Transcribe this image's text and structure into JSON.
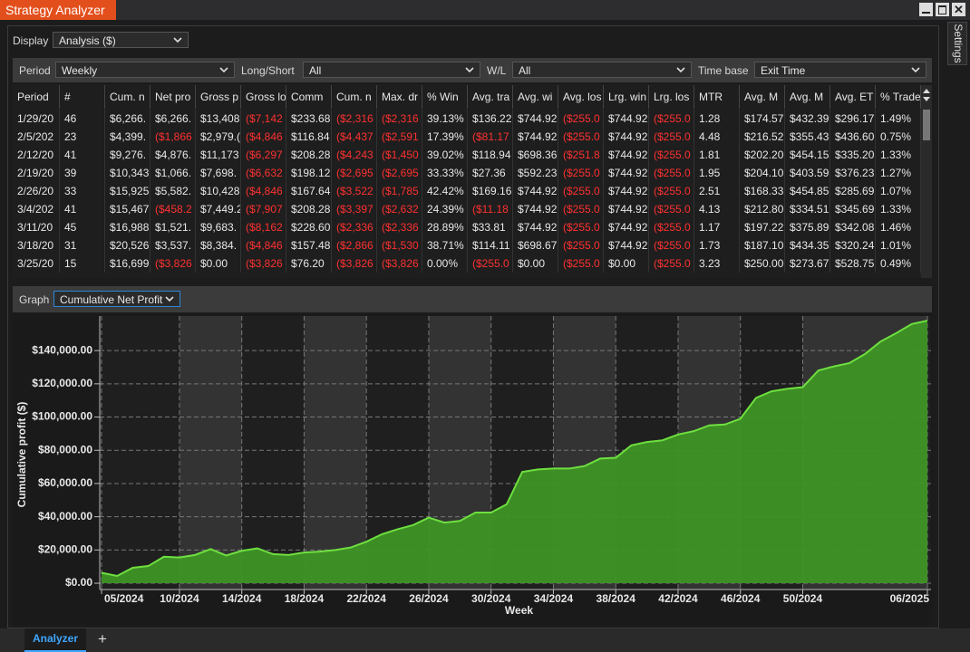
{
  "window": {
    "title": "Strategy Analyzer",
    "side_tab": "Settings",
    "tab": "Analyzer"
  },
  "display": {
    "label": "Display",
    "value": "Analysis ($)"
  },
  "filters": [
    {
      "label": "Period",
      "value": "Weekly"
    },
    {
      "label": "Long/Short",
      "value": "All"
    },
    {
      "label": "W/L",
      "value": "All"
    },
    {
      "label": "Time base",
      "value": "Exit Time"
    }
  ],
  "table": {
    "columns": [
      "Period",
      "#",
      "Cum. n",
      "Net pro",
      "Gross p",
      "Gross lo",
      "Comm",
      "Cum. n",
      "Max. dr",
      "% Win",
      "Avg. tra",
      "Avg. wi",
      "Avg. los",
      "Lrg. win",
      "Lrg. los",
      "MTR",
      "Avg. M",
      "Avg. M",
      "Avg. ET",
      "% Trade"
    ],
    "rows": [
      [
        "1/29/20",
        "46",
        "$6,266.",
        "$6,266.",
        "$13,408",
        "($7,142",
        "$233.68",
        "($2,316",
        "($2,316",
        "39.13%",
        "$136.22",
        "$744.92",
        "($255.0",
        "$744.92",
        "($255.0",
        "1.28",
        "$174.57",
        "$432.39",
        "$296.17",
        "1.49%"
      ],
      [
        "2/5/202",
        "23",
        "$4,399.",
        "($1,866",
        "$2,979.(",
        "($4,846",
        "$116.84",
        "($4,437",
        "($2,591",
        "17.39%",
        "($81.17",
        "$744.92",
        "($255.0",
        "$744.92",
        "($255.0",
        "4.48",
        "$216.52",
        "$355.43",
        "$436.60",
        "0.75%"
      ],
      [
        "2/12/20",
        "41",
        "$9,276.",
        "$4,876.",
        "$11,173",
        "($6,297",
        "$208.28",
        "($4,243",
        "($1,450",
        "39.02%",
        "$118.94",
        "$698.36",
        "($251.8",
        "$744.92",
        "($255.0",
        "1.81",
        "$202.20",
        "$454.15",
        "$335.20",
        "1.33%"
      ],
      [
        "2/19/20",
        "39",
        "$10,343",
        "$1,066.",
        "$7,698.",
        "($6,632",
        "$198.12",
        "($2,695",
        "($2,695",
        "33.33%",
        "$27.36",
        "$592.23",
        "($255.0",
        "$744.92",
        "($255.0",
        "1.95",
        "$204.10",
        "$403.59",
        "$376.23",
        "1.27%"
      ],
      [
        "2/26/20",
        "33",
        "$15,925",
        "$5,582.",
        "$10,428",
        "($4,846",
        "$167.64",
        "($3,522",
        "($1,785",
        "42.42%",
        "$169.16",
        "$744.92",
        "($255.0",
        "$744.92",
        "($255.0",
        "2.51",
        "$168.33",
        "$454.85",
        "$285.69",
        "1.07%"
      ],
      [
        "3/4/202",
        "41",
        "$15,467",
        "($458.2",
        "$7,449.2",
        "($7,907",
        "$208.28",
        "($3,397",
        "($2,632",
        "24.39%",
        "($11.18",
        "$744.92",
        "($255.0",
        "$744.92",
        "($255.0",
        "4.13",
        "$212.80",
        "$334.51",
        "$345.69",
        "1.33%"
      ],
      [
        "3/11/20",
        "45",
        "$16,988",
        "$1,521.",
        "$9,683.",
        "($8,162",
        "$228.60",
        "($2,336",
        "($2,336",
        "28.89%",
        "$33.81",
        "$744.92",
        "($255.0",
        "$744.92",
        "($255.0",
        "1.17",
        "$197.22",
        "$375.89",
        "$342.08",
        "1.46%"
      ],
      [
        "3/18/20",
        "31",
        "$20,526",
        "$3,537.",
        "$8,384.",
        "($4,846",
        "$157.48",
        "($2,866",
        "($1,530",
        "38.71%",
        "$114.11",
        "$698.67",
        "($255.0",
        "$744.92",
        "($255.0",
        "1.73",
        "$187.10",
        "$434.35",
        "$320.24",
        "1.01%"
      ],
      [
        "3/25/20",
        "15",
        "$16,699",
        "($3,826",
        "$0.00",
        "($3,826",
        "$76.20",
        "($3,826",
        "($3,826",
        "0.00%",
        "($255.0",
        "$0.00",
        "($255.0",
        "$0.00",
        "($255.0",
        "3.23",
        "$250.00",
        "$273.67",
        "$528.75",
        "0.49%"
      ]
    ]
  },
  "graph": {
    "label": "Graph",
    "value": "Cumulative Net Profit"
  },
  "chart_data": {
    "type": "area",
    "x_label": "Week",
    "y_label": "Cumulative profit ($)",
    "categories": [
      "05/2024",
      null,
      null,
      null,
      null,
      "10/2024",
      null,
      null,
      null,
      "14/2024",
      null,
      null,
      null,
      "18/2024",
      null,
      null,
      null,
      "22/2024",
      null,
      null,
      null,
      "26/2024",
      null,
      null,
      null,
      "30/2024",
      null,
      null,
      null,
      "34/2024",
      null,
      null,
      null,
      "38/2024",
      null,
      null,
      null,
      "42/2024",
      null,
      null,
      null,
      "46/2024",
      null,
      null,
      null,
      "50/2024",
      null,
      null,
      null,
      null,
      null,
      null,
      null,
      "06/2025"
    ],
    "values": [
      6266,
      4399,
      9276,
      10343,
      15925,
      15467,
      16988,
      20526,
      16699,
      19500,
      21000,
      17500,
      17000,
      18500,
      19000,
      20000,
      21500,
      25000,
      29500,
      32500,
      35000,
      39500,
      36500,
      37500,
      42500,
      42500,
      47500,
      67000,
      68500,
      69000,
      69000,
      70500,
      75000,
      75500,
      83000,
      85000,
      86000,
      89500,
      91500,
      95000,
      95500,
      99000,
      111500,
      115500,
      117000,
      118000,
      128000,
      130500,
      132500,
      138000,
      145500,
      150500,
      156000,
      158000
    ],
    "color": "#3f9426",
    "line_color": "#6ee03f",
    "ylim": [
      -3800,
      160800
    ],
    "yticks": [
      {
        "value": 0,
        "label": "$0.00"
      },
      {
        "value": 20000,
        "label": "$20,000.00"
      },
      {
        "value": 40000,
        "label": "$40,000.00"
      },
      {
        "value": 60000,
        "label": "$60,000.00"
      },
      {
        "value": 80000,
        "label": "$80,000.00"
      },
      {
        "value": 100000,
        "label": "$100,000.00"
      },
      {
        "value": 120000,
        "label": "$120,000.00"
      },
      {
        "value": 140000,
        "label": "$140,000.00"
      }
    ],
    "grid": true
  }
}
